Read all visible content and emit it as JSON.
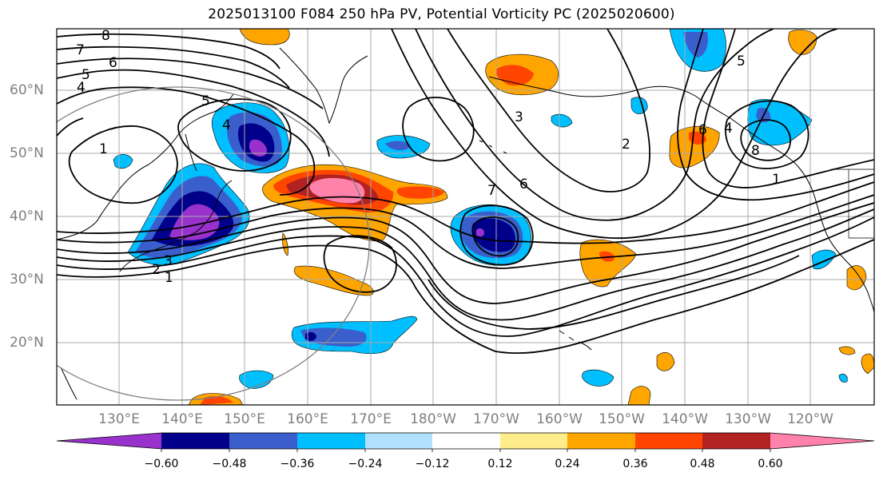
{
  "title": "2025013100 F084 250 hPa PV, Potential Vorticity PC (2025020600)",
  "lat_labels": [
    "60°N",
    "50°N",
    "40°N",
    "30°N",
    "20°N"
  ],
  "lon_labels": [
    "130°E",
    "140°E",
    "150°E",
    "160°E",
    "170°E",
    "180°W",
    "170°W",
    "160°W",
    "150°W",
    "140°W",
    "130°W",
    "120°W"
  ],
  "contour_labels": [
    "8",
    "7",
    "6",
    "5",
    "4",
    "5",
    "4",
    "1",
    "3",
    "2",
    "1",
    "3",
    "6",
    "2",
    "7",
    "6",
    "4",
    "5",
    "1",
    "8"
  ],
  "colorbar": {
    "labels": [
      "−0.60",
      "−0.48",
      "−0.36",
      "−0.24",
      "−0.12",
      "0.12",
      "0.24",
      "0.36",
      "0.48",
      "0.60"
    ],
    "colors": [
      "#9932cc",
      "#00008b",
      "#3a5fcd",
      "#00bfff",
      "#b0e2ff",
      "#ffffff",
      "#ffec8b",
      "#ffa500",
      "#ff4500",
      "#b22222",
      "#ff82ab"
    ]
  },
  "colors": {
    "frame": "#000000",
    "grid": "#a9a9a9",
    "coast": "#000000",
    "contour": "#000000",
    "circle": "#808080",
    "axis_text": "#7f7f7f"
  }
}
